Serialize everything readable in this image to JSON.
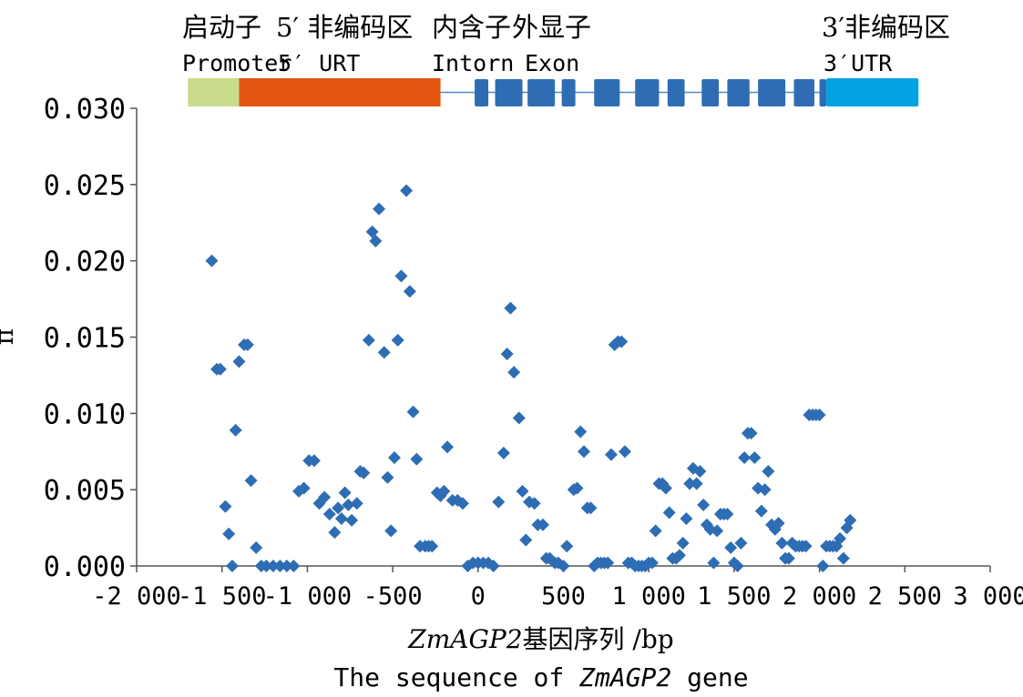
{
  "chart_data": {
    "type": "scatter",
    "title": "",
    "xlabel_italic": "ZmAGP2",
    "xlabel_cn": "基因序列 /bp",
    "xlabel_en_prefix": "The sequence of ",
    "xlabel_en_italic": "ZmAGP2",
    "xlabel_en_suffix": " gene",
    "ylabel": "π",
    "xlim": [
      -2000,
      3000
    ],
    "ylim": [
      0,
      0.03
    ],
    "xticks": [
      -2000,
      -1500,
      -1000,
      -500,
      0,
      500,
      1000,
      1500,
      2000,
      2500,
      3000
    ],
    "xtick_labels": [
      "-2 000",
      "-1 500",
      "-1 000",
      "-500",
      "0",
      "500",
      "1 000",
      "1 500",
      "2 000",
      "2 500",
      "3 000"
    ],
    "yticks": [
      0,
      0.005,
      0.01,
      0.015,
      0.02,
      0.025,
      0.03
    ],
    "ytick_labels": [
      "0.000",
      "0.005",
      "0.010",
      "0.015",
      "0.020",
      "0.025",
      "0.030"
    ],
    "marker_color": "#2e6db4",
    "legend": "none",
    "gene_structure": {
      "labels": {
        "promoter_cn": "启动子",
        "utr5_cn": "5′ 非编码区",
        "intron_cn": "内含子",
        "exon_cn": "外显子",
        "utr3_cn": "3′非编码区",
        "promoter_en": "Promoter",
        "utr5_en": "5′ URT",
        "intron_en": "Intorn",
        "exon_en": "Exon",
        "utr3_en": "3′UTR"
      },
      "colors": {
        "promoter": "#c8dc8c",
        "utr5": "#e2540f",
        "intron_line": "#4d8ac4",
        "exon": "#2e6db4",
        "utr3": "#00a3e0"
      },
      "promoter": [
        -1700,
        -1400
      ],
      "utr5": [
        -1400,
        -220
      ],
      "exons": [
        [
          -20,
          60
        ],
        [
          100,
          260
        ],
        [
          290,
          450
        ],
        [
          490,
          570
        ],
        [
          680,
          830
        ],
        [
          920,
          1060
        ],
        [
          1110,
          1210
        ],
        [
          1310,
          1410
        ],
        [
          1460,
          1590
        ],
        [
          1640,
          1800
        ],
        [
          1850,
          1970
        ],
        [
          2000,
          2040
        ]
      ],
      "utr3": [
        2040,
        2580
      ]
    },
    "points": [
      {
        "x": -1560,
        "y": 0.02
      },
      {
        "x": -1530,
        "y": 0.0129
      },
      {
        "x": -1510,
        "y": 0.0129
      },
      {
        "x": -1480,
        "y": 0.0039
      },
      {
        "x": -1460,
        "y": 0.0021
      },
      {
        "x": -1440,
        "y": 0.0
      },
      {
        "x": -1420,
        "y": 0.0089
      },
      {
        "x": -1400,
        "y": 0.0134
      },
      {
        "x": -1370,
        "y": 0.0145
      },
      {
        "x": -1350,
        "y": 0.0145
      },
      {
        "x": -1330,
        "y": 0.0056
      },
      {
        "x": -1300,
        "y": 0.0012
      },
      {
        "x": -1270,
        "y": 0.0
      },
      {
        "x": -1240,
        "y": 0.0
      },
      {
        "x": -1200,
        "y": 0.0
      },
      {
        "x": -1160,
        "y": 0.0
      },
      {
        "x": -1120,
        "y": 0.0
      },
      {
        "x": -1080,
        "y": 0.0
      },
      {
        "x": -1050,
        "y": 0.0049
      },
      {
        "x": -1020,
        "y": 0.0051
      },
      {
        "x": -990,
        "y": 0.0069
      },
      {
        "x": -960,
        "y": 0.0069
      },
      {
        "x": -930,
        "y": 0.0041
      },
      {
        "x": -900,
        "y": 0.0045
      },
      {
        "x": -870,
        "y": 0.0034
      },
      {
        "x": -840,
        "y": 0.0022
      },
      {
        "x": -820,
        "y": 0.0038
      },
      {
        "x": -800,
        "y": 0.0031
      },
      {
        "x": -780,
        "y": 0.0048
      },
      {
        "x": -760,
        "y": 0.004
      },
      {
        "x": -740,
        "y": 0.003
      },
      {
        "x": -710,
        "y": 0.0041
      },
      {
        "x": -690,
        "y": 0.0062
      },
      {
        "x": -670,
        "y": 0.0061
      },
      {
        "x": -640,
        "y": 0.0148
      },
      {
        "x": -620,
        "y": 0.0219
      },
      {
        "x": -600,
        "y": 0.0213
      },
      {
        "x": -580,
        "y": 0.0234
      },
      {
        "x": -550,
        "y": 0.014
      },
      {
        "x": -530,
        "y": 0.0058
      },
      {
        "x": -510,
        "y": 0.0023
      },
      {
        "x": -490,
        "y": 0.0071
      },
      {
        "x": -470,
        "y": 0.0148
      },
      {
        "x": -450,
        "y": 0.019
      },
      {
        "x": -420,
        "y": 0.0246
      },
      {
        "x": -400,
        "y": 0.018
      },
      {
        "x": -380,
        "y": 0.0101
      },
      {
        "x": -360,
        "y": 0.007
      },
      {
        "x": -340,
        "y": 0.0013
      },
      {
        "x": -310,
        "y": 0.0013
      },
      {
        "x": -290,
        "y": 0.0013
      },
      {
        "x": -270,
        "y": 0.0013
      },
      {
        "x": -240,
        "y": 0.0048
      },
      {
        "x": -220,
        "y": 0.0046
      },
      {
        "x": -200,
        "y": 0.0049
      },
      {
        "x": -180,
        "y": 0.0078
      },
      {
        "x": -150,
        "y": 0.0043
      },
      {
        "x": -120,
        "y": 0.0043
      },
      {
        "x": -90,
        "y": 0.0041
      },
      {
        "x": -60,
        "y": 0.0
      },
      {
        "x": -30,
        "y": 0.0002
      },
      {
        "x": 0,
        "y": 0.0002
      },
      {
        "x": 30,
        "y": 0.0002
      },
      {
        "x": 60,
        "y": 0.0002
      },
      {
        "x": 90,
        "y": 0.0
      },
      {
        "x": 120,
        "y": 0.0042
      },
      {
        "x": 150,
        "y": 0.0074
      },
      {
        "x": 170,
        "y": 0.0139
      },
      {
        "x": 190,
        "y": 0.0169
      },
      {
        "x": 210,
        "y": 0.0127
      },
      {
        "x": 240,
        "y": 0.0097
      },
      {
        "x": 260,
        "y": 0.0049
      },
      {
        "x": 280,
        "y": 0.0017
      },
      {
        "x": 300,
        "y": 0.0042
      },
      {
        "x": 330,
        "y": 0.0041
      },
      {
        "x": 350,
        "y": 0.0027
      },
      {
        "x": 380,
        "y": 0.0027
      },
      {
        "x": 400,
        "y": 0.0005
      },
      {
        "x": 420,
        "y": 0.0005
      },
      {
        "x": 450,
        "y": 0.0002
      },
      {
        "x": 470,
        "y": 0.0002
      },
      {
        "x": 500,
        "y": 0.0
      },
      {
        "x": 520,
        "y": 0.0013
      },
      {
        "x": 560,
        "y": 0.005
      },
      {
        "x": 580,
        "y": 0.0051
      },
      {
        "x": 600,
        "y": 0.0088
      },
      {
        "x": 620,
        "y": 0.0075
      },
      {
        "x": 640,
        "y": 0.0038
      },
      {
        "x": 660,
        "y": 0.0038
      },
      {
        "x": 680,
        "y": 0.0
      },
      {
        "x": 700,
        "y": 0.0002
      },
      {
        "x": 720,
        "y": 0.0002
      },
      {
        "x": 740,
        "y": 0.0002
      },
      {
        "x": 760,
        "y": 0.0002
      },
      {
        "x": 780,
        "y": 0.0073
      },
      {
        "x": 800,
        "y": 0.0145
      },
      {
        "x": 820,
        "y": 0.0147
      },
      {
        "x": 840,
        "y": 0.0147
      },
      {
        "x": 860,
        "y": 0.0075
      },
      {
        "x": 880,
        "y": 0.0002
      },
      {
        "x": 900,
        "y": 0.0002
      },
      {
        "x": 920,
        "y": 0.0
      },
      {
        "x": 940,
        "y": 0.0
      },
      {
        "x": 960,
        "y": 0.0
      },
      {
        "x": 980,
        "y": 0.0
      },
      {
        "x": 1000,
        "y": 0.0002
      },
      {
        "x": 1020,
        "y": 0.0002
      },
      {
        "x": 1040,
        "y": 0.0023
      },
      {
        "x": 1060,
        "y": 0.0054
      },
      {
        "x": 1080,
        "y": 0.0054
      },
      {
        "x": 1100,
        "y": 0.0051
      },
      {
        "x": 1120,
        "y": 0.0035
      },
      {
        "x": 1140,
        "y": 0.0005
      },
      {
        "x": 1160,
        "y": 0.0005
      },
      {
        "x": 1180,
        "y": 0.0007
      },
      {
        "x": 1200,
        "y": 0.0015
      },
      {
        "x": 1220,
        "y": 0.0031
      },
      {
        "x": 1240,
        "y": 0.0054
      },
      {
        "x": 1260,
        "y": 0.0064
      },
      {
        "x": 1280,
        "y": 0.0054
      },
      {
        "x": 1300,
        "y": 0.0062
      },
      {
        "x": 1320,
        "y": 0.004
      },
      {
        "x": 1340,
        "y": 0.0027
      },
      {
        "x": 1360,
        "y": 0.0024
      },
      {
        "x": 1380,
        "y": 0.0002
      },
      {
        "x": 1400,
        "y": 0.0023
      },
      {
        "x": 1420,
        "y": 0.0034
      },
      {
        "x": 1440,
        "y": 0.0034
      },
      {
        "x": 1460,
        "y": 0.0034
      },
      {
        "x": 1480,
        "y": 0.0012
      },
      {
        "x": 1500,
        "y": 0.0002
      },
      {
        "x": 1520,
        "y": 0.0
      },
      {
        "x": 1540,
        "y": 0.0015
      },
      {
        "x": 1560,
        "y": 0.0071
      },
      {
        "x": 1580,
        "y": 0.0087
      },
      {
        "x": 1600,
        "y": 0.0087
      },
      {
        "x": 1620,
        "y": 0.0071
      },
      {
        "x": 1640,
        "y": 0.0051
      },
      {
        "x": 1660,
        "y": 0.0036
      },
      {
        "x": 1680,
        "y": 0.005
      },
      {
        "x": 1700,
        "y": 0.0062
      },
      {
        "x": 1720,
        "y": 0.0027
      },
      {
        "x": 1740,
        "y": 0.0024
      },
      {
        "x": 1760,
        "y": 0.0028
      },
      {
        "x": 1780,
        "y": 0.0015
      },
      {
        "x": 1800,
        "y": 0.0005
      },
      {
        "x": 1820,
        "y": 0.0005
      },
      {
        "x": 1840,
        "y": 0.0015
      },
      {
        "x": 1860,
        "y": 0.0013
      },
      {
        "x": 1880,
        "y": 0.0013
      },
      {
        "x": 1900,
        "y": 0.0013
      },
      {
        "x": 1920,
        "y": 0.0013
      },
      {
        "x": 1940,
        "y": 0.0099
      },
      {
        "x": 1960,
        "y": 0.0099
      },
      {
        "x": 1980,
        "y": 0.0099
      },
      {
        "x": 2000,
        "y": 0.0099
      },
      {
        "x": 2020,
        "y": 0.0
      },
      {
        "x": 2040,
        "y": 0.0013
      },
      {
        "x": 2060,
        "y": 0.0013
      },
      {
        "x": 2080,
        "y": 0.0013
      },
      {
        "x": 2100,
        "y": 0.0013
      },
      {
        "x": 2120,
        "y": 0.0018
      },
      {
        "x": 2140,
        "y": 0.0005
      },
      {
        "x": 2160,
        "y": 0.0025
      },
      {
        "x": 2180,
        "y": 0.003
      }
    ]
  }
}
